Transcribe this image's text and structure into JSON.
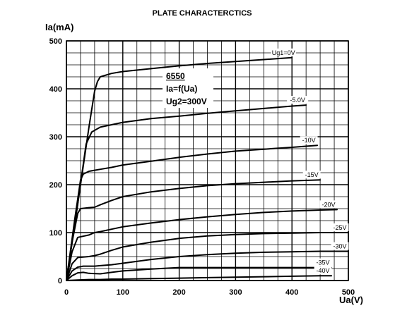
{
  "chart_data": {
    "type": "line",
    "title": "PLATE CHARACTERCTICS",
    "xlabel": "Ua(V)",
    "ylabel": "Ia(mA)",
    "xlim": [
      0,
      500
    ],
    "ylim": [
      0,
      500
    ],
    "x_ticks": [
      "0",
      "100",
      "200",
      "300",
      "400",
      "500"
    ],
    "y_ticks": [
      "0",
      "100",
      "200",
      "300",
      "400",
      "500"
    ],
    "x_tick_values": [
      0,
      100,
      200,
      300,
      400,
      500
    ],
    "y_tick_values": [
      0,
      100,
      200,
      300,
      400,
      500
    ],
    "grid": true,
    "grid_minor_step": 25,
    "grid_major_step": 100,
    "annotation": {
      "tube": "6550",
      "function": "Ia=f(Ua)",
      "screen_voltage": "Ug2=300V"
    },
    "series": [
      {
        "name": "Ug1=0V",
        "x": [
          0,
          20,
          40,
          50,
          55,
          60,
          80,
          100,
          150,
          200,
          250,
          300,
          350,
          400
        ],
        "y": [
          0,
          160,
          320,
          395,
          415,
          425,
          432,
          436,
          442,
          448,
          453,
          457,
          461,
          465
        ]
      },
      {
        "name": "-5.0V",
        "x": [
          0,
          20,
          35,
          45,
          60,
          80,
          100,
          150,
          200,
          250,
          300,
          350,
          400,
          425
        ],
        "y": [
          0,
          160,
          285,
          310,
          320,
          325,
          330,
          338,
          343,
          349,
          354,
          359,
          364,
          366
        ]
      },
      {
        "name": "-10V",
        "x": [
          0,
          15,
          25,
          30,
          40,
          60,
          80,
          100,
          150,
          200,
          250,
          300,
          350,
          400,
          445
        ],
        "y": [
          0,
          130,
          210,
          222,
          228,
          232,
          236,
          241,
          249,
          257,
          264,
          270,
          274,
          278,
          282
        ]
      },
      {
        "name": "-15V",
        "x": [
          0,
          10,
          20,
          25,
          40,
          50,
          60,
          80,
          100,
          150,
          200,
          250,
          300,
          350,
          400,
          450
        ],
        "y": [
          0,
          80,
          140,
          150,
          152,
          153,
          158,
          167,
          175,
          185,
          192,
          198,
          202,
          205,
          208,
          210
        ]
      },
      {
        "name": "-20V",
        "x": [
          0,
          10,
          20,
          40,
          50,
          60,
          80,
          100,
          150,
          200,
          250,
          300,
          350,
          400,
          450,
          480
        ],
        "y": [
          0,
          60,
          90,
          95,
          100,
          102,
          107,
          112,
          120,
          127,
          133,
          138,
          142,
          145,
          147,
          148
        ]
      },
      {
        "name": "-25V",
        "x": [
          0,
          10,
          20,
          40,
          50,
          60,
          80,
          100,
          150,
          200,
          250,
          300,
          350,
          400,
          450,
          500
        ],
        "y": [
          0,
          35,
          48,
          50,
          52,
          55,
          63,
          70,
          80,
          88,
          93,
          96,
          98,
          99,
          100,
          100
        ]
      },
      {
        "name": "-30V",
        "x": [
          0,
          10,
          20,
          30,
          40,
          50,
          60,
          80,
          100,
          150,
          200,
          250,
          300,
          350,
          400,
          450,
          500
        ],
        "y": [
          0,
          20,
          28,
          30,
          30,
          30,
          31,
          33,
          36,
          44,
          50,
          54,
          57,
          59,
          60,
          61,
          61
        ]
      },
      {
        "name": "-35V",
        "x": [
          0,
          10,
          20,
          30,
          40,
          60,
          80,
          100,
          150,
          200,
          250,
          300,
          350,
          400,
          450,
          470
        ],
        "y": [
          0,
          10,
          16,
          17,
          15,
          14,
          17,
          20,
          24,
          27,
          27,
          27,
          27,
          27,
          27,
          27
        ]
      },
      {
        "name": "-40V",
        "x": [
          0,
          20,
          40,
          60,
          80,
          100,
          150,
          200,
          250,
          300,
          350,
          400,
          450,
          470
        ],
        "y": [
          0,
          1,
          2,
          2,
          3,
          3,
          4,
          5,
          6,
          7,
          8,
          9,
          10,
          10
        ]
      }
    ]
  }
}
